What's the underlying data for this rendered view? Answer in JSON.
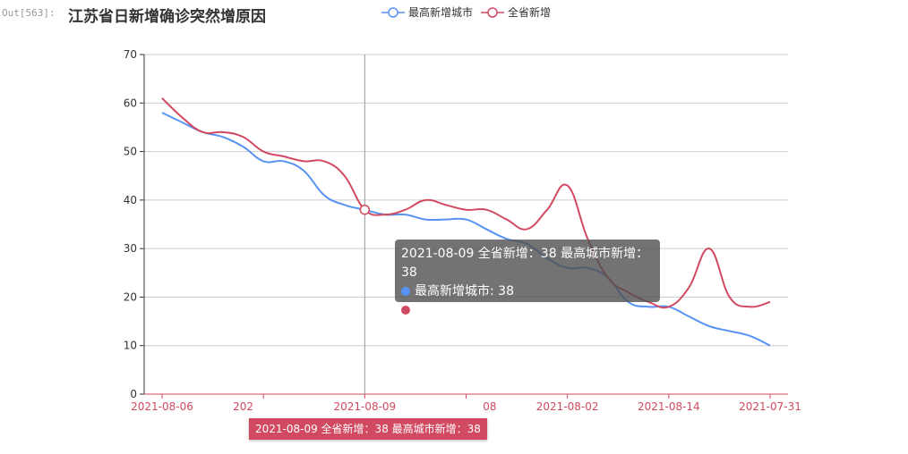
{
  "cell_prompt": "Out[563]:",
  "chart_data": {
    "type": "line",
    "title": "江苏省日新增确诊突然增原因",
    "smooth": true,
    "ylim": [
      0,
      70
    ],
    "yticks": [
      0,
      10,
      20,
      30,
      40,
      50,
      60,
      70
    ],
    "grid": "horizontal",
    "legend_position": "top",
    "tick_labels": [
      "2021-08-06",
      "202",
      "2021-08-09",
      "08",
      "2021-08-02",
      "2021-08-14",
      "2021-07-31"
    ],
    "tick_every": 5,
    "series": [
      {
        "name": "最高新增城市",
        "color": "#5793f3",
        "values": [
          58,
          56,
          54,
          53,
          51,
          48,
          48,
          46,
          41,
          39,
          38,
          37,
          37,
          36,
          36,
          36,
          34,
          32,
          31,
          28,
          26,
          26,
          24,
          19,
          18,
          18,
          16,
          14,
          13,
          12,
          10
        ]
      },
      {
        "name": "全省新增",
        "color": "#d14a61",
        "values": [
          61,
          57,
          54,
          54,
          53,
          50,
          49,
          48,
          48,
          45,
          38,
          37,
          38,
          40,
          39,
          38,
          38,
          36,
          34,
          38,
          43,
          32,
          24,
          21,
          19,
          18,
          22,
          30,
          20,
          18,
          19
        ]
      }
    ],
    "hover_index": 10,
    "tooltip": {
      "title": "2021-08-09 全省新增：38 最高城市新增：38",
      "rows": [
        "最高新增城市: 38",
        "全省新增: 38"
      ]
    },
    "axis_pointer_label": "2021-08-09 全省新增：38 最高城市新增：38"
  }
}
